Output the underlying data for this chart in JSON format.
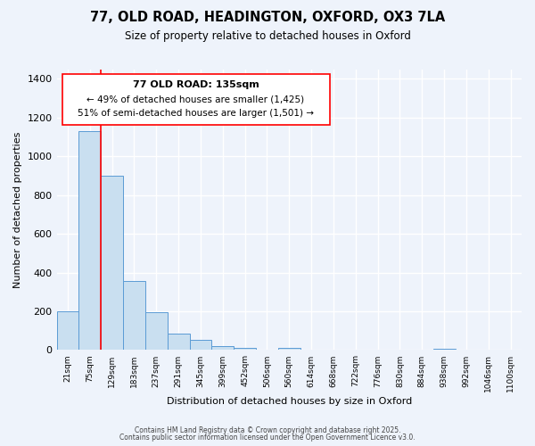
{
  "title": "77, OLD ROAD, HEADINGTON, OXFORD, OX3 7LA",
  "subtitle": "Size of property relative to detached houses in Oxford",
  "xlabel": "Distribution of detached houses by size in Oxford",
  "ylabel": "Number of detached properties",
  "bar_color": "#c9dff0",
  "bar_edge_color": "#5b9bd5",
  "background_color": "#eef3fb",
  "grid_color": "#ffffff",
  "bin_labels": [
    "21sqm",
    "75sqm",
    "129sqm",
    "183sqm",
    "237sqm",
    "291sqm",
    "345sqm",
    "399sqm",
    "452sqm",
    "506sqm",
    "560sqm",
    "614sqm",
    "668sqm",
    "722sqm",
    "776sqm",
    "830sqm",
    "884sqm",
    "938sqm",
    "992sqm",
    "1046sqm",
    "1100sqm"
  ],
  "bar_values": [
    200,
    1130,
    900,
    355,
    195,
    85,
    55,
    20,
    10,
    0,
    10,
    0,
    0,
    0,
    0,
    0,
    0,
    5,
    0,
    0,
    0
  ],
  "ylim": [
    0,
    1450
  ],
  "yticks": [
    0,
    200,
    400,
    600,
    800,
    1000,
    1200,
    1400
  ],
  "property_label": "77 OLD ROAD: 135sqm",
  "annotation_line1": "← 49% of detached houses are smaller (1,425)",
  "annotation_line2": "51% of semi-detached houses are larger (1,501) →",
  "red_line_x": 1.5,
  "footer_line1": "Contains HM Land Registry data © Crown copyright and database right 2025.",
  "footer_line2": "Contains public sector information licensed under the Open Government Licence v3.0."
}
